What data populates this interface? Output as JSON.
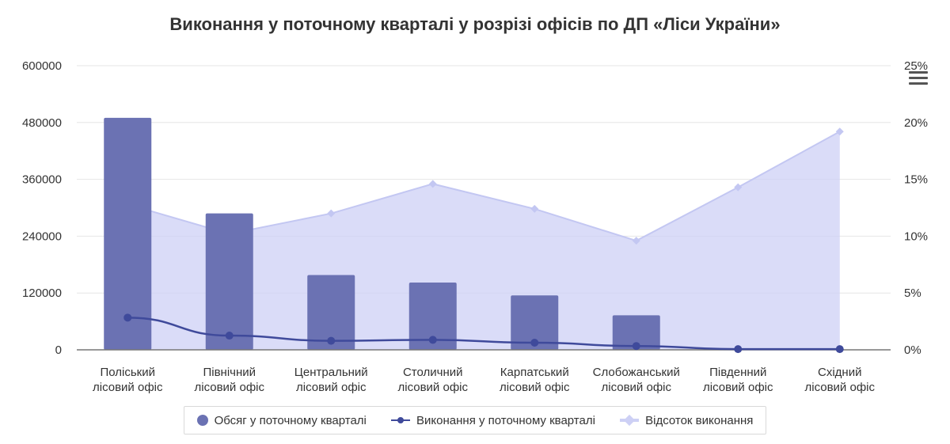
{
  "chart_data": {
    "type": "bar",
    "title": "Виконання у поточному кварталі у розрізі офісів по ДП «Ліси України»",
    "categories": [
      [
        "Поліський",
        "лісовий офіс"
      ],
      [
        "Північний",
        "лісовий офіс"
      ],
      [
        "Центральний",
        "лісовий офіс"
      ],
      [
        "Столичний",
        "лісовий офіс"
      ],
      [
        "Карпатський",
        "лісовий офіс"
      ],
      [
        "Слобожанський",
        "лісовий офіс"
      ],
      [
        "Південний",
        "лісовий офіс"
      ],
      [
        "Східний",
        "лісовий офіс"
      ]
    ],
    "y_left": {
      "ticks": [
        "600000",
        "480000",
        "360000",
        "240000",
        "120000",
        "0"
      ],
      "ylim": [
        0,
        600000
      ]
    },
    "y_right": {
      "ticks": [
        "25%",
        "20%",
        "15%",
        "10%",
        "5%",
        "0%"
      ],
      "ylim": [
        0,
        25
      ]
    },
    "series": [
      {
        "name": "Обсяг у поточному кварталі",
        "type": "bar",
        "axis": "left",
        "color": "#6b72b3",
        "values": [
          490000,
          288000,
          158000,
          142000,
          115000,
          73000,
          0,
          0
        ]
      },
      {
        "name": "Виконання у поточному кварталі",
        "type": "line",
        "axis": "left",
        "color": "#3f4a9b",
        "values": [
          68000,
          30000,
          19000,
          21000,
          15000,
          8000,
          1500,
          1500
        ]
      },
      {
        "name": "Відсоток виконання",
        "type": "area",
        "axis": "right",
        "color": "#cdd0f5",
        "values": [
          12.8,
          10.2,
          12.0,
          14.6,
          12.4,
          9.6,
          14.3,
          19.2
        ]
      }
    ],
    "grid": true,
    "legend_position": "bottom"
  }
}
